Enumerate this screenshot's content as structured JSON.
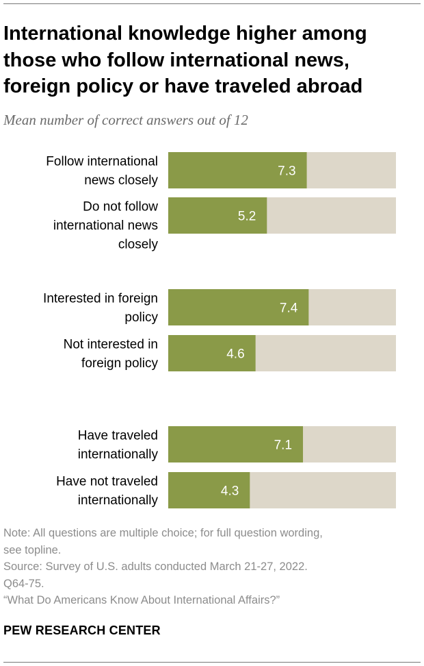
{
  "title": [
    "International knowledge higher among",
    "those who follow international news,",
    "foreign policy or have traveled abroad"
  ],
  "subtitle": "Mean number of correct answers out of 12",
  "chart_data": {
    "type": "bar",
    "orientation": "horizontal",
    "categories": [
      [
        "Follow international",
        "news closely"
      ],
      [
        "Do not follow",
        "international news",
        "closely"
      ],
      [
        "Interested in foreign",
        "policy"
      ],
      [
        "Not interested in",
        "foreign policy"
      ],
      [
        "Have traveled",
        "internationally"
      ],
      [
        "Have not traveled",
        "internationally"
      ]
    ],
    "values": [
      7.3,
      5.2,
      7.4,
      4.6,
      7.1,
      4.3
    ],
    "value_labels": [
      "7.3",
      "5.2",
      "7.4",
      "4.6",
      "7.1",
      "4.3"
    ],
    "groups": [
      [
        0,
        1
      ],
      [
        2,
        3
      ],
      [
        4,
        5
      ]
    ],
    "xlim": [
      0,
      12
    ],
    "grid": false,
    "colors": {
      "bar": "#8a9a48",
      "track": "#ddd7c9",
      "value_label": "#ffffff",
      "category_label": "#000000"
    }
  },
  "notes": [
    "Note: All questions are multiple choice; for full question wording,",
    "see topline.",
    "Source: Survey of U.S. adults conducted March 21-27, 2022.",
    "Q64-75.",
    "“What Do Americans Know About International Affairs?”"
  ],
  "brand": "PEW RESEARCH CENTER"
}
